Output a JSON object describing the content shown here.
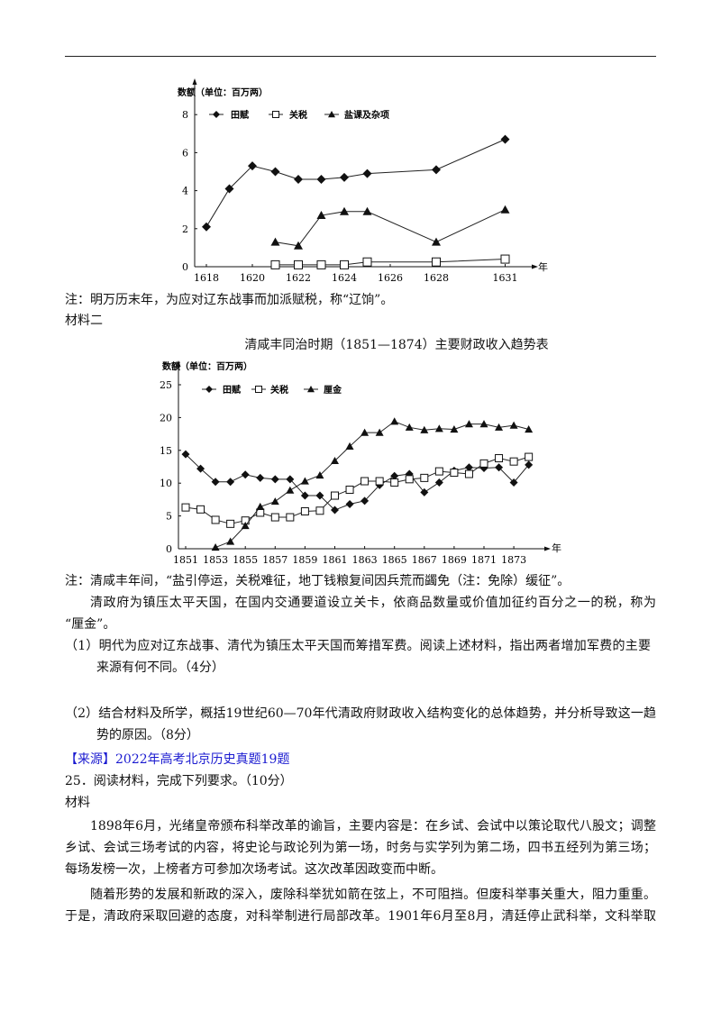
{
  "doc": {
    "note1": "注：明万历末年，为应对辽东战事而加派赋税，称“辽饷”。",
    "material2": "材料二",
    "chart2_title": "清咸丰同治时期（1851—1874）主要财政收入趋势表",
    "note2": "注：清咸丰年间，“盐引停运，关税难征，地丁钱粮复间因兵荒而蠲免（注：免除）缓征”。",
    "para1_l1": "清政府为镇压太平天国，在国内交通要道设立关卡，依商品数量或价值加征约百分之一的税，称为",
    "para1_l2": "“厘金”。",
    "q1_l1": "（1）明代为应对辽东战事、清代为镇压太平天国而筹措军费。阅读上述材料，指出两者增加军费的主要",
    "q1_l2": "来源有何不同。（4分）",
    "q2_l1": "（2）结合材料及所学，概括19世纪60—70年代清政府财政收入结构变化的总体趋势，并分析导致这一趋",
    "q2_l2": "势的原因。（8分）",
    "source": "【来源】2022年高考北京历史真题19题",
    "q25": "25．阅读材料，完成下列要求。（10分）",
    "material": "材料",
    "p2_l1": "1898年6月，光绪皇帝颁布科举改革的谕旨，主要内容是：在乡试、会试中以策论取代八股文；调整",
    "p2_l2": "乡试、会试三场考试的内容，将史论与政论列为第一场，时务与实学列为第二场，四书五经列为第三场；",
    "p2_l3": "每场发榜一次，上榜者方可参加次场考试。这次改革因政变而中断。",
    "p3_l1": "随着形势的发展和新政的深入，废除科举犹如箭在弦上，不可阻挡。但废科举事关重大，阻力重重。",
    "p3_l2": "于是，清政府采取回避的态度，对科举制进行局部改革。1901年6月至8月，清廷停止武科举，文科举取"
  },
  "chart_data": [
    {
      "type": "line",
      "ylabel": "数额（单位：百万两）",
      "xunit": "年",
      "xticks": [
        1618,
        1620,
        1622,
        1624,
        1626,
        1628,
        1631
      ],
      "yticks": [
        0,
        2,
        4,
        6,
        8
      ],
      "ylim": [
        0,
        8.5
      ],
      "xlim": [
        1617.5,
        1632
      ],
      "legend": "top-left",
      "series": [
        {
          "name": "田赋",
          "marker": "diamond",
          "x": [
            1618,
            1619,
            1620,
            1621,
            1622,
            1623,
            1624,
            1625,
            1628,
            1631
          ],
          "y": [
            2.1,
            4.1,
            5.3,
            5.0,
            4.6,
            4.6,
            4.7,
            4.9,
            5.1,
            6.7
          ]
        },
        {
          "name": "关税",
          "marker": "square",
          "x": [
            1621,
            1622,
            1623,
            1624,
            1625,
            1628,
            1631
          ],
          "y": [
            0.1,
            0.1,
            0.1,
            0.1,
            0.25,
            0.25,
            0.4
          ]
        },
        {
          "name": "盐课及杂项",
          "marker": "triangle",
          "x": [
            1621,
            1622,
            1623,
            1624,
            1625,
            1628,
            1631
          ],
          "y": [
            1.3,
            1.1,
            2.7,
            2.9,
            2.9,
            1.3,
            3.0
          ]
        }
      ]
    },
    {
      "type": "line",
      "title": "清咸丰同治时期（1851—1874）主要财政收入趋势表",
      "ylabel": "数额（单位：百万两）",
      "xunit": "年",
      "xticks": [
        1851,
        1853,
        1855,
        1857,
        1859,
        1861,
        1863,
        1865,
        1867,
        1869,
        1871,
        1873
      ],
      "yticks": [
        0,
        5,
        10,
        15,
        20,
        25
      ],
      "ylim": [
        0,
        26
      ],
      "xlim": [
        1850.5,
        1875
      ],
      "legend": "top-left",
      "series": [
        {
          "name": "田赋",
          "marker": "diamond",
          "x": [
            1851,
            1852,
            1853,
            1854,
            1855,
            1856,
            1857,
            1858,
            1859,
            1860,
            1861,
            1862,
            1863,
            1864,
            1865,
            1866,
            1867,
            1868,
            1869,
            1870,
            1871,
            1872,
            1873,
            1874
          ],
          "y": [
            14.4,
            12.2,
            10.2,
            10.2,
            11.3,
            10.8,
            10.6,
            10.6,
            8.1,
            8.1,
            5.9,
            6.8,
            7.3,
            9.7,
            11.1,
            11.4,
            8.6,
            10.1,
            11.9,
            12.4,
            12.3,
            12.4,
            10.1,
            12.8
          ]
        },
        {
          "name": "关税",
          "marker": "square",
          "x": [
            1851,
            1852,
            1853,
            1854,
            1855,
            1856,
            1857,
            1858,
            1859,
            1860,
            1861,
            1862,
            1863,
            1864,
            1865,
            1866,
            1867,
            1868,
            1869,
            1870,
            1871,
            1872,
            1873,
            1874
          ],
          "y": [
            6.3,
            6.0,
            4.4,
            3.8,
            4.3,
            5.5,
            4.8,
            4.8,
            5.7,
            5.8,
            8.1,
            9.0,
            10.3,
            10.3,
            10.1,
            10.6,
            10.8,
            11.8,
            11.6,
            11.4,
            13.0,
            13.8,
            13.3,
            14.0
          ]
        },
        {
          "name": "厘金",
          "marker": "triangle",
          "x": [
            1853,
            1854,
            1855,
            1856,
            1857,
            1858,
            1859,
            1860,
            1861,
            1862,
            1863,
            1864,
            1865,
            1866,
            1867,
            1868,
            1869,
            1870,
            1871,
            1872,
            1873,
            1874
          ],
          "y": [
            0.2,
            1.1,
            3.5,
            6.4,
            7.2,
            8.9,
            10.3,
            11.2,
            13.4,
            15.6,
            17.7,
            17.7,
            19.4,
            18.5,
            18.1,
            18.3,
            18.2,
            19.0,
            19.0,
            18.5,
            18.8,
            18.2
          ]
        }
      ]
    }
  ]
}
